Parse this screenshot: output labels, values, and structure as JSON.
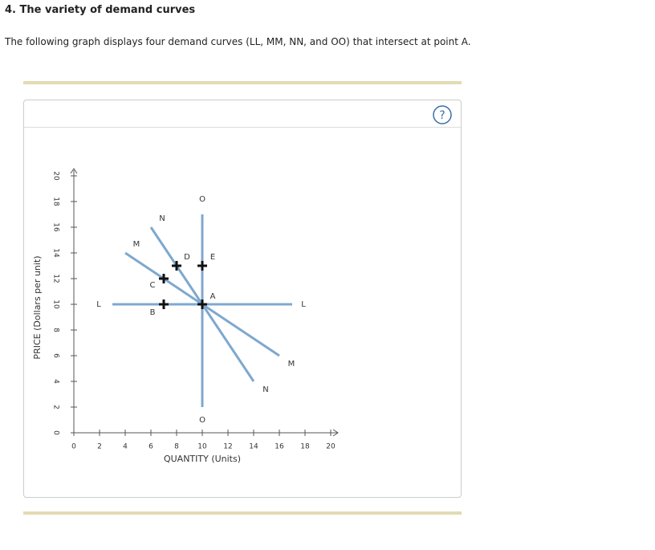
{
  "header": {
    "title": "4. The variety of demand curves"
  },
  "intro": "The following graph displays four demand curves (LL, MM, NN, and OO) that intersect at point A.",
  "chart_data": {
    "type": "line",
    "x_label": "QUANTITY (Units)",
    "y_label": "PRICE (Dollars per unit)",
    "xlim": [
      0,
      20
    ],
    "ylim": [
      0,
      20
    ],
    "xticks": [
      0,
      2,
      4,
      6,
      8,
      10,
      12,
      14,
      16,
      18,
      20
    ],
    "yticks": [
      0,
      2,
      4,
      6,
      8,
      10,
      12,
      14,
      16,
      18,
      20
    ],
    "series": [
      {
        "name": "L",
        "color": "#7ea8cf",
        "x": [
          3,
          17
        ],
        "values": [
          10,
          10
        ]
      },
      {
        "name": "M",
        "color": "#7ea8cf",
        "x": [
          4,
          16
        ],
        "values": [
          14,
          6
        ]
      },
      {
        "name": "N",
        "color": "#7ea8cf",
        "x": [
          6,
          14
        ],
        "values": [
          16,
          4
        ]
      },
      {
        "name": "O",
        "color": "#7ea8cf",
        "x": [
          10,
          10
        ],
        "values": [
          17,
          2
        ]
      }
    ],
    "points": [
      {
        "name": "A",
        "x": 10,
        "y": 10
      },
      {
        "name": "B",
        "x": 7,
        "y": 10
      },
      {
        "name": "C",
        "x": 7,
        "y": 12
      },
      {
        "name": "D",
        "x": 8,
        "y": 13
      },
      {
        "name": "E",
        "x": 10,
        "y": 13
      }
    ]
  }
}
